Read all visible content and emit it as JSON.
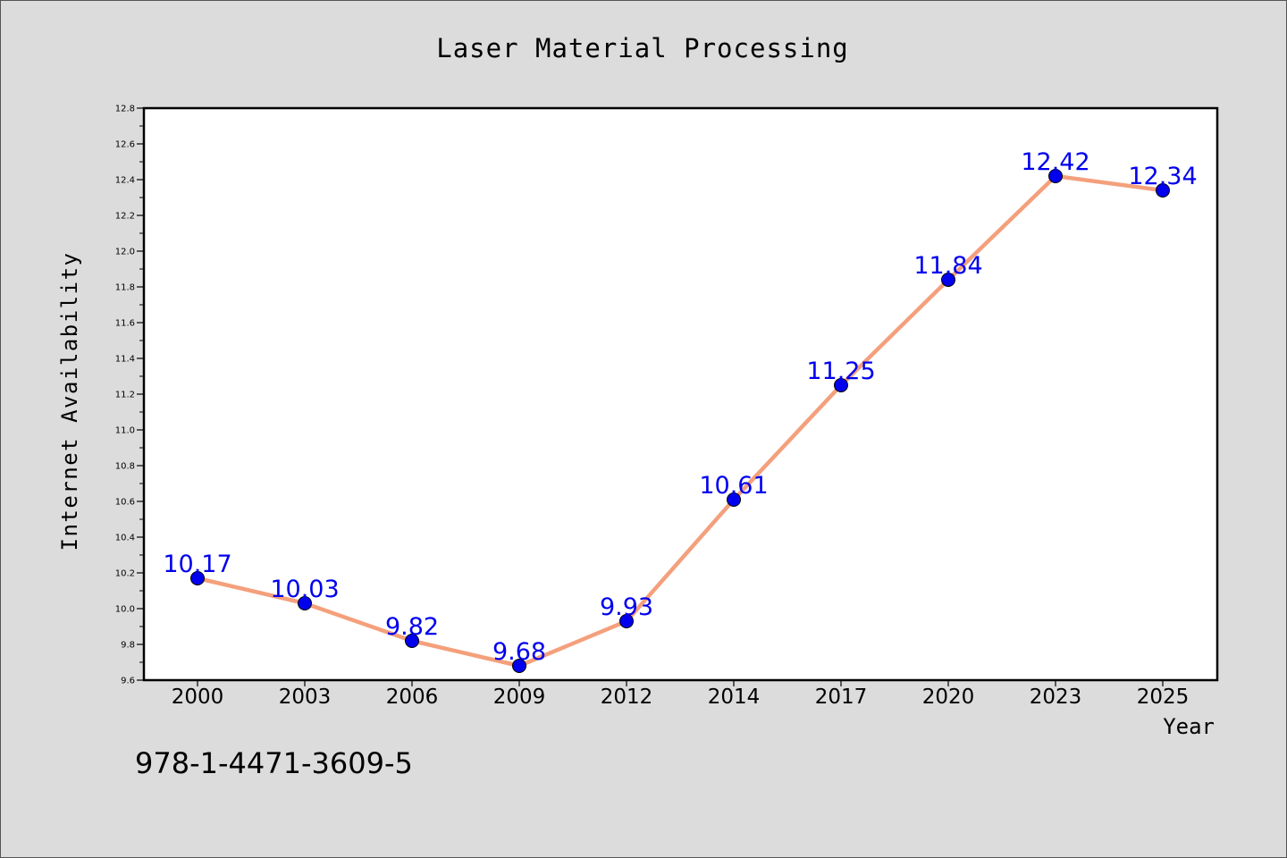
{
  "chart_data": {
    "type": "line",
    "title": "Laser Material Processing",
    "xlabel": "Year",
    "ylabel": "Internet Availability",
    "categories": [
      "2000",
      "2003",
      "2006",
      "2009",
      "2012",
      "2014",
      "2017",
      "2020",
      "2023",
      "2025"
    ],
    "series": [
      {
        "values": [
          10.17,
          10.03,
          9.82,
          9.68,
          9.93,
          10.61,
          11.25,
          11.84,
          12.42,
          12.34
        ],
        "data_labels": [
          "10.17",
          "10.03",
          "9.82",
          "9.68",
          "9.93",
          "10.61",
          "11.25",
          "11.84",
          "12.42",
          "12.34"
        ],
        "line_color": "#f4a07c",
        "marker_color": "#0000ee",
        "label_color": "#0000ee"
      }
    ],
    "ylim": [
      9.6,
      12.8
    ],
    "y_ticks": [
      "9.6",
      "9.8",
      "10.0",
      "10.2",
      "10.4",
      "10.6",
      "10.8",
      "11.0",
      "11.2",
      "11.4",
      "11.6",
      "11.8",
      "12.0",
      "12.2",
      "12.4",
      "12.6",
      "12.8"
    ],
    "grid": false,
    "legend": "none"
  },
  "footer_text": "978-1-4471-3609-5",
  "colors": {
    "background": "#dcdcdc",
    "plot_background": "#ffffff",
    "axis": "#000000"
  }
}
